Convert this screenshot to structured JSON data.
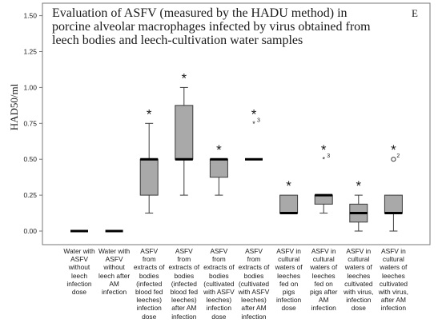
{
  "colors": {
    "box_fill": "#a9a9a9",
    "box_stroke": "#3a3a3a",
    "median": "#000000",
    "frame": "#777777",
    "text": "#1a1a1a"
  },
  "panel_letter": "E",
  "chart_data": {
    "type": "box",
    "title_lines": [
      "Evaluation of ASFV (measured by the HADU method) in",
      "porcine alveolar macrophages infected by virus obtained from",
      "leech bodies and leech-cultivation water samples"
    ],
    "ylabel": "HAD50/ml",
    "xlabel": "",
    "ylim": [
      -0.1,
      1.55
    ],
    "yticks": [
      "0.00",
      "0.25",
      "0.50",
      "0.75",
      "1.00",
      "1.25",
      "1.50"
    ],
    "grid": false,
    "categories": [
      "Water with\nASFV\nwithout\nleech\ninfection\ndose",
      "Water with\nASFV\nwithout\nleech after\nAM\ninfection",
      "ASFV\nfrom\nextracts of\nbodies\n(infected\nblood fed\nleeches)\ninfection\ndose",
      "ASFV\nfrom\nextracts of\nbodies\n(infected\nblood fed\nleeches)\nafter AM\ninfection",
      "ASFV\nfrom\nextracts of\nbodies\n(cultivated\nwith ASFV\nleeches)\ninfection\ndose",
      "ASFV\nfrom\nextracts of\nbodies\n(cultivated\nwith ASFV\nleeches)\nafter AM\ninfection",
      "ASFV in\ncultural\nwaters of\nleeches\nfed on\npigs\ninfection\ndose",
      "ASFV in\ncultural\nwaters of\nleeches\nfed on\npigs after\nAM\ninfection",
      "ASFV in\ncultural\nwaters of\nleeches\ncultivated\nwith virus,\ninfection\ndose",
      "ASFV in\ncultural\nwaters of\nleeches\ncultivated\nwith virus,\nafter AM\ninfection"
    ],
    "boxes": [
      {
        "min": 0,
        "q1": 0,
        "median": 0,
        "q3": 0,
        "max": 0,
        "significant": false,
        "outliers": []
      },
      {
        "min": 0,
        "q1": 0,
        "median": 0,
        "q3": 0,
        "max": 0,
        "significant": false,
        "outliers": []
      },
      {
        "min": 0.125,
        "q1": 0.25,
        "median": 0.5,
        "q3": 0.5,
        "max": 0.75,
        "significant": true,
        "outliers": []
      },
      {
        "min": 0.25,
        "q1": 0.5,
        "median": 0.5,
        "q3": 0.875,
        "max": 1.0,
        "significant": true,
        "outliers": []
      },
      {
        "min": 0.25,
        "q1": 0.375,
        "median": 0.5,
        "q3": 0.5,
        "max": 0.5,
        "significant": true,
        "outliers": []
      },
      {
        "min": 0.5,
        "q1": 0.5,
        "median": 0.5,
        "q3": 0.5,
        "max": 0.5,
        "significant": true,
        "outliers": [
          {
            "value": 0.75,
            "marker": "star",
            "label": "3"
          }
        ]
      },
      {
        "min": 0.125,
        "q1": 0.125,
        "median": 0.125,
        "q3": 0.25,
        "max": 0.25,
        "significant": true,
        "outliers": []
      },
      {
        "min": 0.125,
        "q1": 0.1875,
        "median": 0.25,
        "q3": 0.25,
        "max": 0.25,
        "significant": true,
        "outliers": [
          {
            "value": 0.5,
            "marker": "star",
            "label": "3"
          }
        ]
      },
      {
        "min": 0.0,
        "q1": 0.0625,
        "median": 0.125,
        "q3": 0.1875,
        "max": 0.25,
        "significant": true,
        "outliers": []
      },
      {
        "min": 0.0,
        "q1": 0.125,
        "median": 0.125,
        "q3": 0.25,
        "max": 0.25,
        "significant": true,
        "outliers": [
          {
            "value": 0.5,
            "marker": "circle",
            "label": "2"
          }
        ]
      }
    ],
    "significance_marker": "*"
  }
}
